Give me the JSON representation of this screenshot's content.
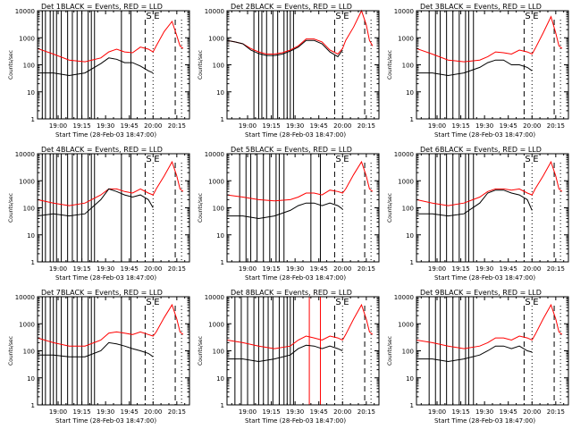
{
  "figure": {
    "panel_titles": [
      "Det 1",
      "Det 2",
      "Det 3",
      "Det 4",
      "Det 5",
      "Det 6",
      "Det 7",
      "Det 8",
      "Det 9"
    ],
    "title_suffix": " BLACK = Events, RED = LLD",
    "ylabel": "Counts/sec",
    "xlabel": "Start Time (28-Feb-03 18:47:00)",
    "marker_labels": [
      "S",
      "E"
    ],
    "series_colors": {
      "events": "#000000",
      "lld": "#ff0000"
    },
    "x_tick_labels": [
      "19:00",
      "19:15",
      "19:30",
      "19:45",
      "20:00",
      "20:15"
    ],
    "y_tick_labels": [
      "1",
      "10",
      "100",
      "1000",
      "10000"
    ]
  },
  "chart_data": [
    {
      "type": "line",
      "title": "Det 1 BLACK = Events, RED = LLD",
      "ylabel": "Counts/sec",
      "xlabel": "Start Time (28-Feb-03 18:47:00)",
      "xlim": [
        "18:47",
        "20:23"
      ],
      "ylim": [
        1,
        10000
      ],
      "yscale": "log",
      "grid": false,
      "x_minutes": [
        0,
        10,
        20,
        30,
        40,
        45,
        50,
        55,
        60,
        65,
        70,
        73,
        75,
        80,
        85,
        88,
        90,
        92
      ],
      "series": [
        {
          "name": "LLD",
          "values": [
            400,
            250,
            150,
            130,
            180,
            300,
            380,
            300,
            280,
            450,
            380,
            300,
            500,
            1700,
            4000,
            1200,
            500,
            400
          ]
        },
        {
          "name": "Events",
          "values": [
            50,
            50,
            40,
            50,
            110,
            180,
            160,
            120,
            120,
            90,
            60,
            50,
            null,
            null,
            null,
            null,
            null,
            null
          ]
        }
      ],
      "solid_lines_min": [
        3,
        5,
        8,
        10,
        12,
        15,
        19,
        22,
        25,
        28,
        32,
        34,
        36,
        53,
        59
      ],
      "dashed_lines_min": [
        68,
        87
      ],
      "dotted_lines_min": [
        73,
        91
      ]
    },
    {
      "type": "line",
      "title": "Det 2 BLACK = Events, RED = LLD",
      "ylabel": "Counts/sec",
      "xlabel": "Start Time (28-Feb-03 18:47:00)",
      "xlim": [
        "18:47",
        "20:23"
      ],
      "ylim": [
        1,
        10000
      ],
      "yscale": "log",
      "grid": false,
      "x_minutes": [
        0,
        5,
        10,
        15,
        20,
        25,
        30,
        35,
        40,
        45,
        50,
        55,
        60,
        65,
        70,
        73,
        75,
        80,
        85,
        88,
        90,
        92
      ],
      "series": [
        {
          "name": "LLD",
          "values": [
            800,
            700,
            600,
            400,
            300,
            250,
            250,
            280,
            350,
            500,
            900,
            900,
            700,
            350,
            250,
            400,
            800,
            2500,
            10000,
            3000,
            800,
            500
          ]
        },
        {
          "name": "Events",
          "values": [
            800,
            700,
            600,
            350,
            260,
            220,
            220,
            250,
            320,
            450,
            800,
            800,
            600,
            300,
            200,
            350,
            null,
            null,
            null,
            null,
            null,
            null
          ]
        }
      ],
      "solid_lines_min": [
        17,
        20,
        22,
        25,
        29,
        32,
        36,
        38,
        40,
        42
      ],
      "dashed_lines_min": [
        68,
        87
      ],
      "dotted_lines_min": [
        73,
        91
      ]
    },
    {
      "type": "line",
      "title": "Det 3 BLACK = Events, RED = LLD",
      "ylabel": "Counts/sec",
      "xlabel": "Start Time (28-Feb-03 18:47:00)",
      "xlim": [
        "18:47",
        "20:23"
      ],
      "ylim": [
        1,
        10000
      ],
      "yscale": "log",
      "grid": false,
      "x_minutes": [
        0,
        10,
        20,
        30,
        40,
        45,
        50,
        55,
        60,
        65,
        70,
        73,
        75,
        80,
        85,
        88,
        90,
        92
      ],
      "series": [
        {
          "name": "LLD",
          "values": [
            400,
            250,
            150,
            130,
            150,
            200,
            300,
            280,
            250,
            350,
            300,
            250,
            400,
            1500,
            6000,
            1500,
            500,
            400
          ]
        },
        {
          "name": "Events",
          "values": [
            50,
            50,
            40,
            50,
            80,
            120,
            150,
            150,
            100,
            100,
            80,
            60,
            null,
            null,
            null,
            null,
            null,
            null
          ]
        }
      ],
      "solid_lines_min": [
        8,
        12,
        15,
        19,
        23,
        27,
        31,
        33,
        36
      ],
      "dashed_lines_min": [
        68,
        87
      ],
      "dotted_lines_min": [
        73,
        91
      ]
    },
    {
      "type": "line",
      "title": "Det 4 BLACK = Events, RED = LLD",
      "ylabel": "Counts/sec",
      "xlabel": "Start Time (28-Feb-03 18:47:00)",
      "xlim": [
        "18:47",
        "20:23"
      ],
      "ylim": [
        1,
        10000
      ],
      "yscale": "log",
      "grid": false,
      "x_minutes": [
        0,
        10,
        20,
        30,
        40,
        45,
        50,
        55,
        60,
        65,
        70,
        73,
        75,
        80,
        85,
        88,
        90,
        92
      ],
      "series": [
        {
          "name": "LLD",
          "values": [
            200,
            150,
            120,
            150,
            300,
            500,
            500,
            400,
            350,
            500,
            350,
            300,
            500,
            1500,
            5000,
            1500,
            500,
            400
          ]
        },
        {
          "name": "Events",
          "values": [
            50,
            60,
            50,
            60,
            200,
            500,
            400,
            300,
            250,
            300,
            200,
            100,
            null,
            null,
            null,
            null,
            null,
            null
          ]
        }
      ],
      "solid_lines_min": [
        3,
        5,
        8,
        10,
        12,
        15,
        19,
        22,
        25,
        28,
        32,
        34,
        36,
        53,
        59
      ],
      "dashed_lines_min": [
        68,
        87
      ],
      "dotted_lines_min": [
        73,
        91
      ]
    },
    {
      "type": "line",
      "title": "Det 5 BLACK = Events, RED = LLD",
      "ylabel": "Counts/sec",
      "xlabel": "Start Time (28-Feb-03 18:47:00)",
      "xlim": [
        "18:47",
        "20:23"
      ],
      "ylim": [
        1,
        10000
      ],
      "yscale": "log",
      "grid": false,
      "x_minutes": [
        0,
        10,
        20,
        30,
        40,
        45,
        50,
        55,
        60,
        65,
        70,
        73,
        75,
        80,
        85,
        88,
        90,
        92
      ],
      "series": [
        {
          "name": "LLD",
          "values": [
            300,
            250,
            200,
            180,
            200,
            250,
            350,
            350,
            300,
            450,
            400,
            350,
            500,
            1700,
            5000,
            1500,
            500,
            400
          ]
        },
        {
          "name": "Events",
          "values": [
            50,
            50,
            40,
            50,
            80,
            120,
            150,
            150,
            120,
            150,
            120,
            90,
            null,
            null,
            null,
            null,
            null,
            null
          ]
        }
      ],
      "solid_lines_min": [
        8,
        12,
        15,
        19,
        23,
        27,
        31,
        33,
        36,
        53,
        59
      ],
      "dashed_lines_min": [
        68,
        87
      ],
      "dotted_lines_min": [
        73,
        91
      ]
    },
    {
      "type": "line",
      "title": "Det 6 BLACK = Events, RED = LLD",
      "ylabel": "Counts/sec",
      "xlabel": "Start Time (28-Feb-03 18:47:00)",
      "xlim": [
        "18:47",
        "20:23"
      ],
      "ylim": [
        1,
        10000
      ],
      "yscale": "log",
      "grid": false,
      "x_minutes": [
        0,
        10,
        20,
        30,
        40,
        45,
        50,
        55,
        60,
        65,
        70,
        73,
        75,
        80,
        85,
        88,
        90,
        92
      ],
      "series": [
        {
          "name": "LLD",
          "values": [
            200,
            150,
            120,
            150,
            250,
            400,
            500,
            500,
            450,
            500,
            350,
            300,
            500,
            1500,
            5000,
            1500,
            500,
            400
          ]
        },
        {
          "name": "Events",
          "values": [
            60,
            60,
            50,
            60,
            150,
            350,
            450,
            450,
            350,
            300,
            200,
            80,
            null,
            null,
            null,
            null,
            null,
            null
          ]
        }
      ],
      "solid_lines_min": [
        8,
        12,
        15,
        19,
        23,
        27,
        31,
        33,
        36
      ],
      "dashed_lines_min": [
        68,
        87
      ],
      "dotted_lines_min": [
        73,
        91
      ]
    },
    {
      "type": "line",
      "title": "Det 7 BLACK = Events, RED = LLD",
      "ylabel": "Counts/sec",
      "xlabel": "Start Time (28-Feb-03 18:47:00)",
      "xlim": [
        "18:47",
        "20:23"
      ],
      "ylim": [
        1,
        10000
      ],
      "yscale": "log",
      "grid": false,
      "x_minutes": [
        0,
        10,
        20,
        30,
        40,
        45,
        50,
        55,
        60,
        65,
        70,
        73,
        75,
        80,
        85,
        88,
        90,
        92
      ],
      "series": [
        {
          "name": "LLD",
          "values": [
            300,
            200,
            150,
            150,
            250,
            450,
            500,
            450,
            400,
            500,
            400,
            350,
            500,
            1700,
            5000,
            1500,
            500,
            400
          ]
        },
        {
          "name": "Events",
          "values": [
            70,
            70,
            60,
            60,
            100,
            200,
            180,
            150,
            120,
            100,
            80,
            60,
            null,
            null,
            null,
            null,
            null,
            null
          ]
        }
      ],
      "solid_lines_min": [
        3,
        5,
        8,
        10,
        12,
        15,
        19,
        22,
        25,
        28,
        32,
        34,
        36,
        53,
        59
      ],
      "dashed_lines_min": [
        68,
        87
      ],
      "dotted_lines_min": [
        73,
        91
      ]
    },
    {
      "type": "line",
      "title": "Det 8 BLACK = Events, RED = LLD",
      "ylabel": "Counts/sec",
      "xlabel": "Start Time (28-Feb-03 18:47:00)",
      "xlim": [
        "18:47",
        "20:23"
      ],
      "ylim": [
        1,
        10000
      ],
      "yscale": "log",
      "grid": false,
      "x_minutes": [
        0,
        10,
        20,
        30,
        40,
        45,
        50,
        55,
        60,
        65,
        70,
        73,
        75,
        80,
        85,
        88,
        90,
        92
      ],
      "series": [
        {
          "name": "LLD",
          "values": [
            250,
            200,
            150,
            120,
            150,
            250,
            350,
            300,
            250,
            350,
            300,
            250,
            400,
            1500,
            5000,
            1500,
            500,
            400
          ]
        },
        {
          "name": "Events",
          "values": [
            50,
            50,
            40,
            50,
            70,
            120,
            160,
            150,
            120,
            150,
            120,
            100,
            null,
            null,
            null,
            null,
            null,
            null
          ]
        }
      ],
      "solid_lines_min": [
        5,
        9,
        13,
        17,
        20,
        23,
        26,
        29,
        33,
        36,
        38,
        40,
        42
      ],
      "red_lines_min": [
        52,
        59
      ],
      "dashed_lines_min": [
        68,
        87
      ],
      "dotted_lines_min": [
        73,
        91
      ]
    },
    {
      "type": "line",
      "title": "Det 9 BLACK = Events, RED = LLD",
      "ylabel": "Counts/sec",
      "xlabel": "Start Time (28-Feb-03 18:47:00)",
      "xlim": [
        "18:47",
        "20:23"
      ],
      "ylim": [
        1,
        10000
      ],
      "yscale": "log",
      "grid": false,
      "x_minutes": [
        0,
        10,
        20,
        30,
        40,
        45,
        50,
        55,
        60,
        65,
        70,
        73,
        75,
        80,
        85,
        88,
        90,
        92
      ],
      "series": [
        {
          "name": "LLD",
          "values": [
            250,
            200,
            150,
            120,
            150,
            200,
            300,
            300,
            250,
            350,
            300,
            250,
            400,
            1500,
            5000,
            1500,
            500,
            400
          ]
        },
        {
          "name": "Events",
          "values": [
            50,
            50,
            40,
            50,
            70,
            100,
            150,
            150,
            120,
            150,
            100,
            90,
            null,
            null,
            null,
            null,
            null,
            null
          ]
        }
      ],
      "solid_lines_min": [
        8,
        12,
        15,
        19,
        23,
        27,
        31,
        33,
        36
      ],
      "dashed_lines_min": [
        68,
        87
      ],
      "dotted_lines_min": [
        73,
        91
      ]
    }
  ]
}
